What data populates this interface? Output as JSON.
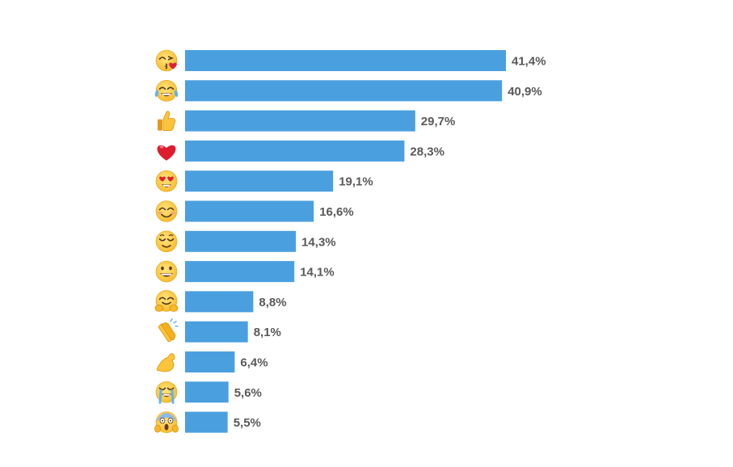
{
  "chart_data": {
    "type": "bar",
    "orientation": "horizontal",
    "title": "",
    "xlabel": "",
    "ylabel": "",
    "xlim": [
      0,
      41.4
    ],
    "grid": false,
    "bar_color": "#4a9fdf",
    "label_color": "#595959",
    "categories": [
      "face-throwing-kiss",
      "face-with-tears-of-joy",
      "thumbs-up",
      "red-heart",
      "heart-eyes",
      "smiling-face-with-smiling-eyes",
      "relieved-smiling-face",
      "grinning-face",
      "hugging-face",
      "clapping-hands",
      "flexed-biceps",
      "loudly-crying-face",
      "face-screaming-in-fear"
    ],
    "values": [
      41.4,
      40.9,
      29.7,
      28.3,
      19.1,
      16.6,
      14.3,
      14.1,
      8.8,
      8.1,
      6.4,
      5.6,
      5.5
    ],
    "value_labels": [
      "41,4%",
      "40,9%",
      "29,7%",
      "28,3%",
      "19,1%",
      "16,6%",
      "14,3%",
      "14,1%",
      "8,8%",
      "8,1%",
      "6,4%",
      "5,6%",
      "5,5%"
    ]
  }
}
